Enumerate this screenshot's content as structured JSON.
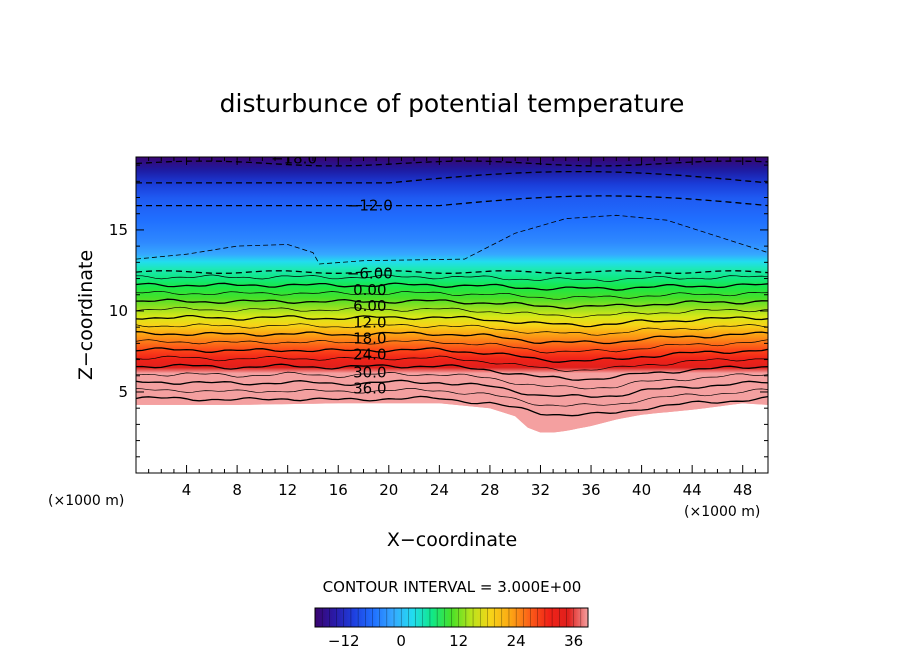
{
  "chart_data": {
    "type": "contour",
    "title": "disturbunce of potential temperature",
    "xlabel": "X−coordinate",
    "ylabel": "Z−coordinate",
    "x_unit": "(×1000 m)",
    "y_unit": "(×1000 m)",
    "xlim": [
      0,
      50
    ],
    "ylim": [
      0,
      19.5
    ],
    "x_ticks": [
      4,
      8,
      12,
      16,
      20,
      24,
      28,
      32,
      36,
      40,
      44,
      48
    ],
    "y_ticks": [
      5,
      10,
      15
    ],
    "contour_interval_text": "CONTOUR INTERVAL = 3.000E+00",
    "colorbar": {
      "vmin": -18,
      "vmax": 39,
      "ticks": [
        -12,
        0,
        12,
        24,
        36
      ]
    },
    "contour_labels": [
      {
        "text": "−18.0",
        "x": 12.5,
        "z": 19.4,
        "value": -18
      },
      {
        "text": "−12.0",
        "x": 18.5,
        "z": 16.5,
        "value": -12
      },
      {
        "text": "−6.00",
        "x": 18.5,
        "z": 12.3,
        "value": -6
      },
      {
        "text": "0.00",
        "x": 18.5,
        "z": 11.3,
        "value": 0
      },
      {
        "text": "6.00",
        "x": 18.5,
        "z": 10.3,
        "value": 6
      },
      {
        "text": "12.0",
        "x": 18.5,
        "z": 9.3,
        "value": 12
      },
      {
        "text": "18.0",
        "x": 18.5,
        "z": 8.3,
        "value": 18
      },
      {
        "text": "24.0",
        "x": 18.5,
        "z": 7.3,
        "value": 24
      },
      {
        "text": "30.0",
        "x": 18.5,
        "z": 6.2,
        "value": 30
      },
      {
        "text": "36.0",
        "x": 18.5,
        "z": 5.2,
        "value": 36
      }
    ],
    "layer_profile": {
      "x": [
        0,
        4,
        8,
        12,
        16,
        20,
        24,
        28,
        30,
        32,
        34,
        36,
        38,
        40,
        44,
        48,
        50
      ],
      "z_dip": [
        0,
        0,
        0.1,
        0,
        0.1,
        0,
        0,
        0.3,
        0.6,
        0.9,
        1.0,
        1.0,
        0.9,
        0.6,
        0.3,
        0.1,
        0
      ]
    },
    "ground_profile": {
      "x": [
        0,
        8,
        16,
        24,
        28,
        30,
        31,
        32,
        33,
        34,
        36,
        38,
        40,
        44,
        46,
        48,
        50
      ],
      "z": [
        4.2,
        4.2,
        4.3,
        4.3,
        4.0,
        3.5,
        2.8,
        2.5,
        2.5,
        2.6,
        2.9,
        3.3,
        3.6,
        3.9,
        4.1,
        4.3,
        4.2
      ]
    }
  }
}
